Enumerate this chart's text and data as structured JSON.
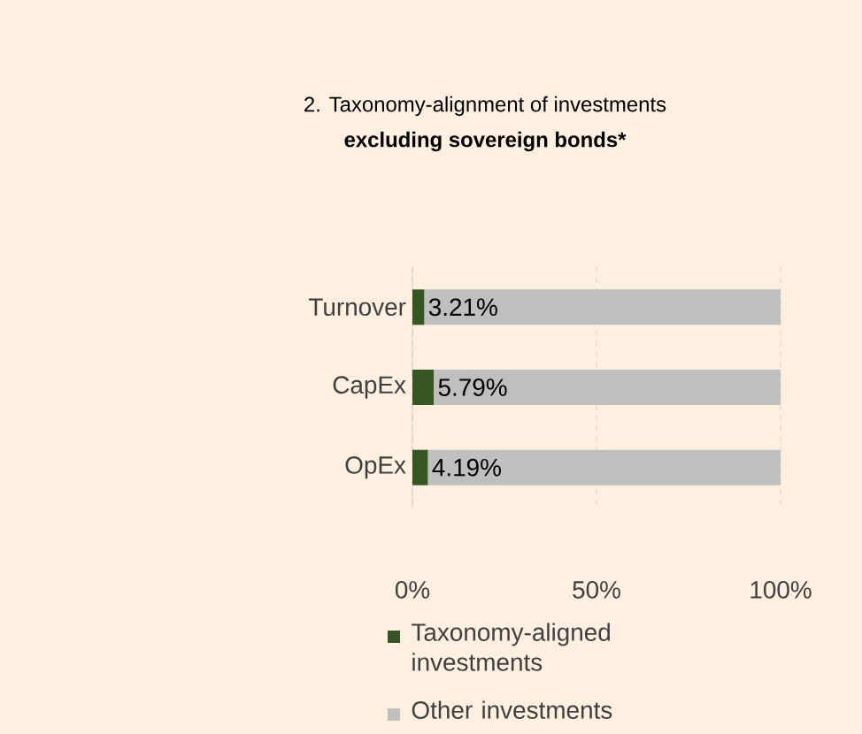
{
  "chart_data": {
    "type": "bar",
    "orientation": "horizontal",
    "stacked": true,
    "title": "2. Taxonomy-alignment of investments",
    "subtitle": "excluding sovereign bonds*",
    "categories": [
      "Turnover",
      "CapEx",
      "OpEx"
    ],
    "series": [
      {
        "name": "Taxonomy-aligned investments",
        "color": "#375623",
        "values": [
          3.21,
          5.79,
          4.19
        ],
        "value_labels": [
          "3.21%",
          "5.79%",
          "4.19%"
        ]
      },
      {
        "name": "Other investments",
        "color": "#bfbfbf",
        "values": [
          96.79,
          94.21,
          95.81
        ]
      }
    ],
    "xlim": [
      0,
      100
    ],
    "xticks": [
      {
        "value": 0,
        "label": "0%"
      },
      {
        "value": 50,
        "label": "50%"
      },
      {
        "value": 100,
        "label": "100%"
      }
    ],
    "grid": "x",
    "legend": "bottom"
  }
}
